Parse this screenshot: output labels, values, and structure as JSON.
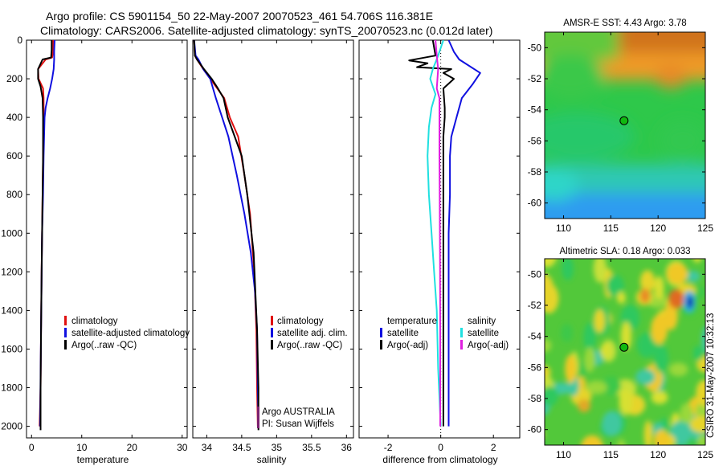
{
  "header": {
    "line1": "Argo profile: CS 5901154_50 22-May-2007 20070523_461 54.706S 116.381E",
    "line2": "Climatology: CARS2006. Satellite-adjusted climatology: synTS_20070523.nc (0.012d later)"
  },
  "side_stamp": "CSIRO 31-May-2007 10:32:13",
  "colors": {
    "red": "#e01010",
    "blue": "#1010e0",
    "black": "#000000",
    "cyan": "#20e0e0",
    "magenta": "#e020e0",
    "purple": "#7a1f6e"
  },
  "chart_data": [
    {
      "type": "line",
      "id": "temperature",
      "xlabel": "temperature",
      "ylabel": "",
      "xlim": [
        -1,
        31
      ],
      "ylim": [
        2060,
        0
      ],
      "xticks": [
        0,
        10,
        20,
        30
      ],
      "yticks": [
        0,
        200,
        400,
        600,
        800,
        1000,
        1200,
        1400,
        1600,
        1800,
        2000
      ],
      "series": [
        {
          "name": "climatology",
          "color": "red",
          "x": [
            4.3,
            4.3,
            4.1,
            2.8,
            1.3,
            1.4,
            2.3,
            2.4,
            2.4,
            2.3,
            2.2,
            2.1,
            2.0,
            1.9,
            1.8,
            1.6
          ],
          "y": [
            0,
            60,
            90,
            100,
            150,
            200,
            250,
            300,
            400,
            600,
            800,
            1000,
            1200,
            1500,
            1800,
            2000
          ]
        },
        {
          "name": "satellite-adjusted climatology",
          "color": "blue",
          "x": [
            4.6,
            4.5,
            4.5,
            4.4,
            4.1,
            3.7,
            3.2,
            2.8,
            2.6,
            2.4,
            2.3,
            2.1,
            1.9,
            1.7
          ],
          "y": [
            0,
            60,
            100,
            150,
            200,
            250,
            300,
            350,
            400,
            600,
            800,
            1000,
            1500,
            2000
          ]
        },
        {
          "name": "Argo(..raw -QC)",
          "color": "black",
          "x": [
            4.0,
            4.0,
            3.9,
            2.2,
            1.3,
            1.3,
            1.8,
            2.2,
            2.3,
            2.3,
            2.2,
            2.1,
            2.0,
            1.9,
            1.8,
            1.8
          ],
          "y": [
            0,
            50,
            90,
            100,
            150,
            200,
            240,
            300,
            400,
            600,
            800,
            1000,
            1200,
            1500,
            1800,
            2020
          ]
        }
      ],
      "legend": {
        "position": "lower-right",
        "entries": [
          "climatology",
          "satellite-adjusted climatology",
          "Argo(..raw -QC)"
        ]
      }
    },
    {
      "type": "line",
      "id": "salinity",
      "xlabel": "salinity",
      "ylabel": "",
      "xlim": [
        33.8,
        36.1
      ],
      "ylim": [
        2060,
        0
      ],
      "xticks": [
        34,
        34.5,
        35,
        35.5,
        36
      ],
      "xticklabels": [
        "34",
        "34.5",
        "35",
        "35.5",
        "36"
      ],
      "series": [
        {
          "name": "climatology",
          "color": "red",
          "x": [
            33.82,
            33.83,
            33.86,
            33.95,
            34.05,
            34.15,
            34.25,
            34.33,
            34.45,
            34.54,
            34.62,
            34.68,
            34.71,
            34.72,
            34.73
          ],
          "y": [
            0,
            80,
            100,
            150,
            200,
            250,
            300,
            400,
            500,
            700,
            900,
            1200,
            1500,
            1800,
            2000
          ]
        },
        {
          "name": "satellite adj. clim.",
          "color": "blue",
          "x": [
            33.82,
            33.84,
            33.88,
            33.95,
            34.05,
            34.13,
            34.22,
            34.31,
            34.43,
            34.54,
            34.63,
            34.69,
            34.72,
            34.73,
            34.74
          ],
          "y": [
            0,
            80,
            100,
            150,
            200,
            300,
            400,
            500,
            700,
            900,
            1100,
            1300,
            1500,
            1800,
            2000
          ]
        },
        {
          "name": "Argo(..raw -QC)",
          "color": "black",
          "x": [
            33.82,
            33.83,
            33.86,
            33.96,
            34.07,
            34.16,
            34.24,
            34.3,
            34.4,
            34.5,
            34.58,
            34.67,
            34.72,
            34.74,
            34.74
          ],
          "y": [
            0,
            80,
            100,
            150,
            200,
            250,
            300,
            400,
            500,
            600,
            800,
            1100,
            1500,
            1800,
            2020
          ]
        }
      ],
      "legend": {
        "position": "lower-right",
        "entries": [
          "climatology",
          "satellite adj. clim.",
          "Argo(..raw -QC)"
        ]
      },
      "annotations": [
        "Argo AUSTRALIA",
        "PI: Susan Wijffels"
      ]
    },
    {
      "type": "line",
      "id": "difference",
      "xlabel": "difference from climatology",
      "ylabel": "",
      "xlim": [
        -3.1,
        3.0
      ],
      "ylim": [
        2060,
        0
      ],
      "xticks": [
        -2,
        0,
        2
      ],
      "series": [
        {
          "name": "temperature satellite",
          "color": "blue",
          "x": [
            0.3,
            0.5,
            0.7,
            1.5,
            1.2,
            0.8,
            0.6,
            0.4,
            0.35,
            0.35,
            0.3,
            0.3,
            0.3
          ],
          "y": [
            0,
            60,
            100,
            170,
            230,
            300,
            400,
            500,
            600,
            800,
            1000,
            1500,
            2000
          ]
        },
        {
          "name": "temperature Argo(-adj)",
          "color": "black",
          "x": [
            -0.3,
            -0.2,
            -1.2,
            -0.5,
            -0.9,
            0.4,
            0.1,
            0.5,
            0.1,
            0.15,
            0.15,
            0.1,
            0.1,
            0.1,
            0.1,
            0.1
          ],
          "y": [
            0,
            80,
            105,
            120,
            140,
            150,
            170,
            200,
            250,
            350,
            400,
            500,
            800,
            1200,
            1600,
            2000
          ]
        },
        {
          "name": "salinity satellite",
          "color": "cyan",
          "x": [
            0.1,
            -0.1,
            -0.3,
            -0.4,
            -0.2,
            -0.35,
            -0.45,
            -0.5,
            -0.45,
            -0.35,
            -0.25,
            -0.15,
            -0.1,
            0.0
          ],
          "y": [
            0,
            80,
            150,
            200,
            280,
            350,
            450,
            600,
            800,
            1000,
            1200,
            1400,
            1700,
            2000
          ]
        },
        {
          "name": "salinity Argo(-adj)",
          "color": "magenta",
          "x": [
            -0.2,
            -0.15,
            -0.1,
            -0.15,
            -0.05,
            -0.05,
            -0.05,
            -0.04,
            -0.03,
            -0.02,
            -0.02
          ],
          "y": [
            0,
            80,
            150,
            250,
            300,
            400,
            600,
            800,
            1100,
            1500,
            2000
          ]
        }
      ],
      "legend": {
        "position": "lower",
        "group_titles": [
          "temperature",
          "salinity"
        ],
        "entries": [
          "satellite",
          "Argo(-adj)",
          "satellite",
          "Argo(-adj)"
        ]
      }
    },
    {
      "type": "heatmap",
      "id": "sst-map",
      "title": "AMSR-E SST: 4.43 Argo: 3.78",
      "xlim": [
        108,
        125
      ],
      "ylim": [
        -61,
        -49
      ],
      "xticks": [
        110,
        115,
        120,
        125
      ],
      "yticks": [
        -50,
        -52,
        -54,
        -56,
        -58,
        -60
      ],
      "marker": {
        "lon": 116.4,
        "lat": -54.7
      }
    },
    {
      "type": "heatmap",
      "id": "sla-map",
      "title": "Altimetric SLA: 0.18 Argo: 0.033",
      "xlim": [
        108,
        125
      ],
      "ylim": [
        -61,
        -49
      ],
      "xticks": [
        110,
        115,
        120,
        125
      ],
      "yticks": [
        -50,
        -52,
        -54,
        -56,
        -58,
        -60
      ],
      "marker": {
        "lon": 116.4,
        "lat": -54.7
      }
    }
  ]
}
